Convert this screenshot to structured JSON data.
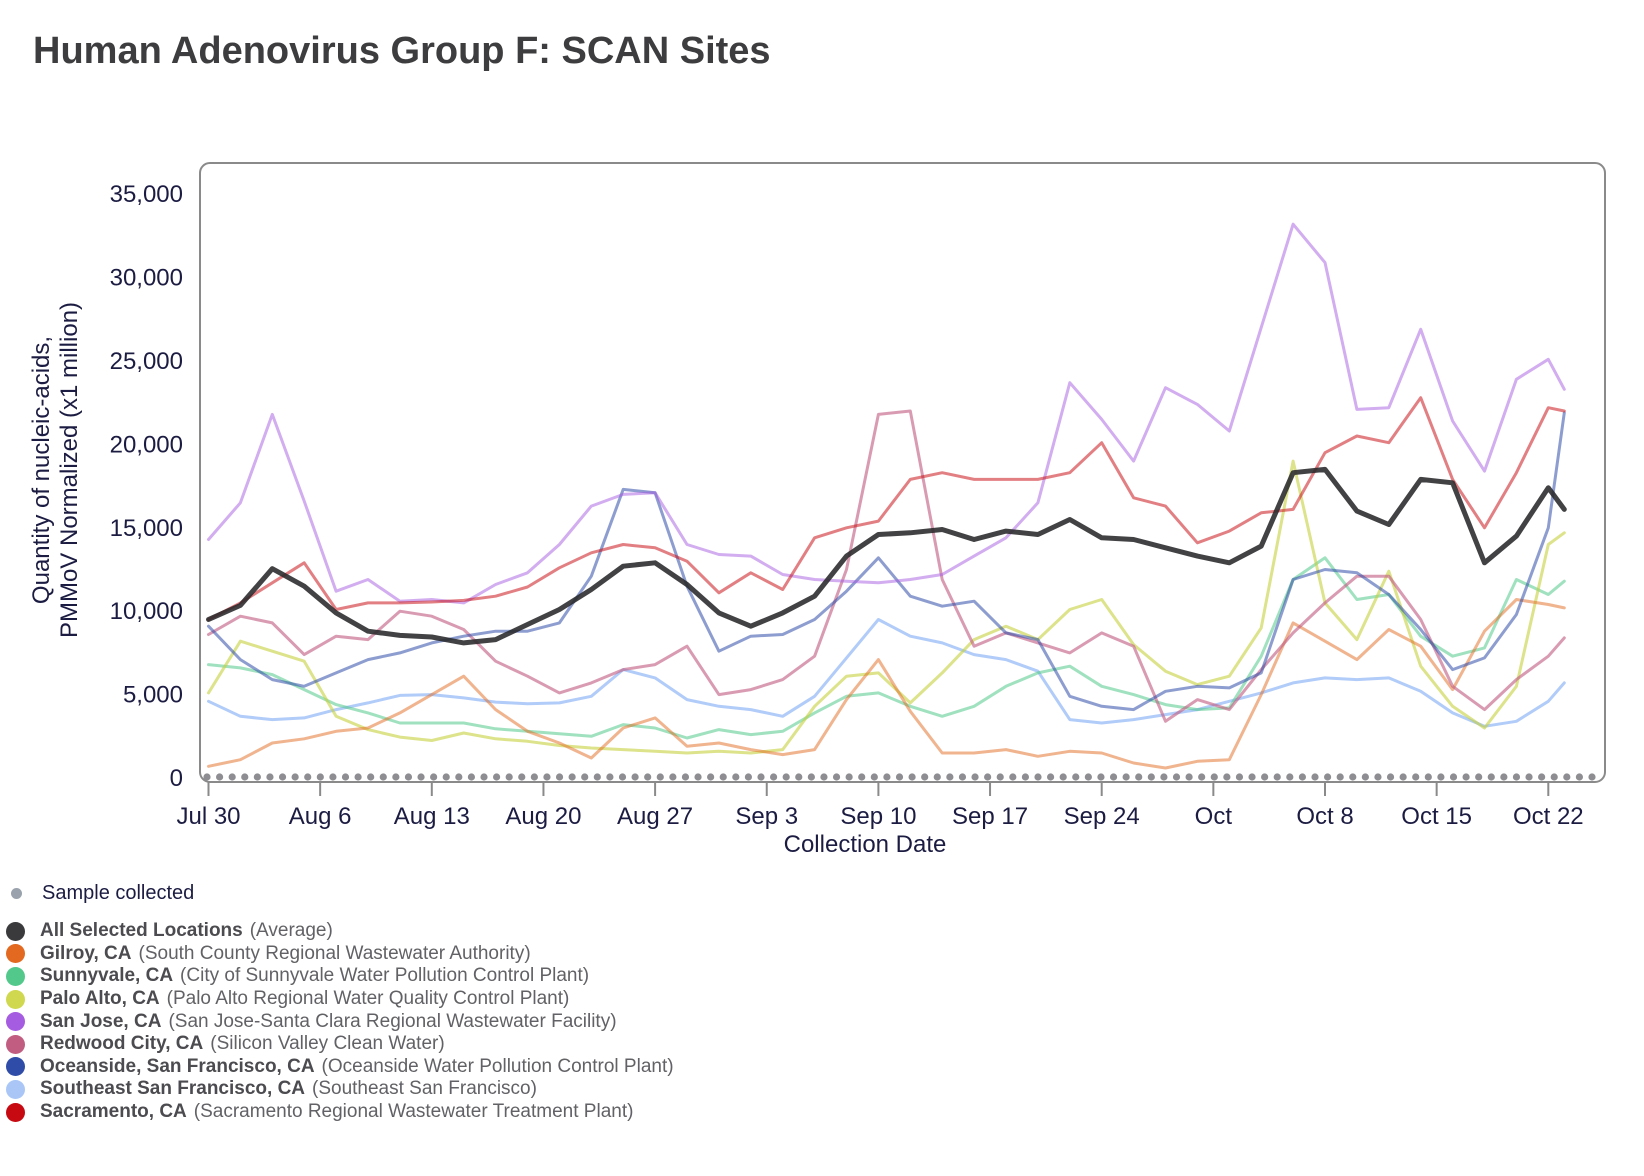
{
  "title": "Human Adenovirus Group F: SCAN Sites",
  "chart_data": {
    "type": "line",
    "title": "Human Adenovirus Group F: SCAN Sites",
    "xlabel": "Collection Date",
    "ylabel_line1": "Quantity of nucleic-acids,",
    "ylabel_line2": "PMMoV Normalized (x1 million)",
    "ylim": [
      0,
      37000
    ],
    "y_ticks": [
      0,
      5000,
      10000,
      15000,
      20000,
      25000,
      30000,
      35000
    ],
    "y_tick_labels": [
      "0",
      "5,000",
      "10,000",
      "15,000",
      "20,000",
      "25,000",
      "30,000",
      "35,000"
    ],
    "x_ticks": [
      {
        "label": "Jul 30",
        "day": 0
      },
      {
        "label": "Aug 6",
        "day": 7
      },
      {
        "label": "Aug 13",
        "day": 14
      },
      {
        "label": "Aug 20",
        "day": 21
      },
      {
        "label": "Aug 27",
        "day": 28
      },
      {
        "label": "Sep 3",
        "day": 35
      },
      {
        "label": "Sep 10",
        "day": 42
      },
      {
        "label": "Sep 17",
        "day": 49
      },
      {
        "label": "Sep 24",
        "day": 56
      },
      {
        "label": "Oct",
        "day": 63
      },
      {
        "label": "Oct 8",
        "day": 70
      },
      {
        "label": "Oct 15",
        "day": 77
      },
      {
        "label": "Oct 22",
        "day": 84
      }
    ],
    "grid": false,
    "legend_position": "bottom-left",
    "sample_collected": {
      "label": "Sample collected",
      "dot_color": "#9aa2ad",
      "row_dot_color": "#8d8d92",
      "dots_count": 111
    },
    "x_days": [
      0,
      2,
      4,
      6,
      8,
      10,
      12,
      14,
      16,
      18,
      20,
      22,
      24,
      26,
      28,
      30,
      32,
      34,
      36,
      38,
      40,
      42,
      44,
      46,
      48,
      50,
      52,
      54,
      56,
      58,
      60,
      62,
      64,
      66,
      68,
      70,
      72,
      74,
      76,
      78,
      80,
      82,
      84,
      85
    ],
    "series": [
      {
        "name": "All Selected Locations",
        "desc": "(Average)",
        "color": "#3a3a3c",
        "line_color": "rgba(40,40,42,0.88)",
        "line_width": 5,
        "values": [
          9500,
          10350,
          12550,
          11500,
          9900,
          8800,
          8550,
          8450,
          8100,
          8300,
          9200,
          10100,
          11300,
          12700,
          12900,
          11600,
          9900,
          9100,
          9900,
          10900,
          13300,
          14600,
          14700,
          14900,
          14300,
          14800,
          14600,
          15500,
          14400,
          14300,
          13800,
          13300,
          12900,
          13900,
          18300,
          18500,
          16000,
          15200,
          17900,
          17700,
          12900,
          14500,
          17400,
          16100
        ]
      },
      {
        "name": "Gilroy, CA",
        "desc": "(South County Regional Wastewater Authority)",
        "color": "#e2691f",
        "line_color": "rgba(226,105,31,0.5)",
        "line_width": 3,
        "values": [
          700,
          1100,
          2100,
          2350,
          2800,
          3000,
          3900,
          5000,
          6100,
          4100,
          2800,
          2100,
          1200,
          3000,
          3600,
          1900,
          2100,
          1700,
          1400,
          1700,
          4700,
          7100,
          4000,
          1500,
          1500,
          1700,
          1300,
          1600,
          1500,
          900,
          600,
          1000,
          1100,
          5000,
          9300,
          8200,
          7100,
          8900,
          7900,
          5300,
          8800,
          10700,
          10400,
          10200
        ]
      },
      {
        "name": "Sunnyvale, CA",
        "desc": "(City of Sunnyvale Water Pollution Control Plant)",
        "color": "#52c98b",
        "line_color": "rgba(82,201,139,0.55)",
        "line_width": 3,
        "values": [
          6800,
          6600,
          6200,
          5300,
          4400,
          3900,
          3300,
          3300,
          3300,
          2950,
          2800,
          2650,
          2500,
          3200,
          3000,
          2400,
          2900,
          2600,
          2800,
          3900,
          4900,
          5100,
          4300,
          3700,
          4300,
          5500,
          6300,
          6700,
          5500,
          5000,
          4400,
          4100,
          4200,
          7300,
          11900,
          13200,
          10700,
          11000,
          8500,
          7300,
          7800,
          11900,
          11000,
          11800
        ]
      },
      {
        "name": "Palo Alto, CA",
        "desc": "(Palo Alto Regional Water Quality Control Plant)",
        "color": "#cfd84e",
        "line_color": "rgba(197,208,60,0.6)",
        "line_width": 3,
        "values": [
          5100,
          8200,
          7600,
          7000,
          3700,
          2900,
          2450,
          2250,
          2700,
          2350,
          2200,
          1950,
          1800,
          1700,
          1600,
          1500,
          1600,
          1500,
          1700,
          4300,
          6100,
          6300,
          4500,
          6300,
          8300,
          9100,
          8300,
          10100,
          10700,
          8000,
          6400,
          5600,
          6100,
          9000,
          19000,
          10500,
          8300,
          12400,
          6700,
          4300,
          3000,
          5500,
          14000,
          14700
        ]
      },
      {
        "name": "San Jose, CA",
        "desc": "(San Jose-Santa Clara Regional Wastewater Facility)",
        "color": "#a55ce0",
        "line_color": "rgba(165,92,224,0.5)",
        "line_width": 3,
        "values": [
          14300,
          16500,
          21800,
          16600,
          11200,
          11900,
          10600,
          10700,
          10500,
          11600,
          12300,
          14000,
          16300,
          17000,
          17100,
          14000,
          13400,
          13300,
          12200,
          11900,
          11800,
          11700,
          11900,
          12200,
          13300,
          14400,
          16500,
          23700,
          21500,
          19000,
          23400,
          22400,
          20800,
          27000,
          33200,
          30900,
          22100,
          22200,
          26900,
          21400,
          18400,
          23900,
          25100,
          23300
        ]
      },
      {
        "name": "Redwood City, CA",
        "desc": "(Silicon Valley Clean Water)",
        "color": "#c25d82",
        "line_color": "rgba(194,93,130,0.62)",
        "line_width": 3,
        "values": [
          8600,
          9700,
          9300,
          7400,
          8500,
          8300,
          10000,
          9700,
          8900,
          7000,
          6100,
          5100,
          5700,
          6500,
          6800,
          7900,
          5000,
          5300,
          5900,
          7300,
          12500,
          21800,
          22000,
          11900,
          7900,
          8700,
          8100,
          7500,
          8700,
          7900,
          3400,
          4700,
          4100,
          6500,
          8700,
          10500,
          12100,
          12100,
          9500,
          5500,
          4100,
          5900,
          7300,
          8400
        ]
      },
      {
        "name": "Oceanside, San Francisco, CA",
        "desc": "(Oceanside Water Pollution Control Plant)",
        "color": "#2f4da8",
        "line_color": "rgba(47,77,168,0.55)",
        "line_width": 3,
        "values": [
          9100,
          7100,
          5900,
          5500,
          6300,
          7100,
          7500,
          8100,
          8500,
          8800,
          8800,
          9300,
          12100,
          17300,
          17100,
          11500,
          7600,
          8500,
          8600,
          9500,
          11200,
          13200,
          10900,
          10300,
          10600,
          8700,
          8300,
          4900,
          4300,
          4100,
          5200,
          5500,
          5400,
          6300,
          11900,
          12500,
          12300,
          11000,
          8900,
          6500,
          7200,
          9800,
          15000,
          21900
        ]
      },
      {
        "name": "Southeast San Francisco, CA",
        "desc": "(Southeast San Francisco)",
        "color": "#a9c6f7",
        "line_color": "rgba(169,198,247,0.9)",
        "line_width": 3,
        "values": [
          4600,
          3700,
          3500,
          3600,
          4100,
          4500,
          4950,
          5000,
          4800,
          4550,
          4450,
          4500,
          4900,
          6500,
          6000,
          4700,
          4300,
          4100,
          3700,
          4900,
          7200,
          9500,
          8500,
          8100,
          7400,
          7100,
          6400,
          3500,
          3300,
          3500,
          3800,
          4100,
          4600,
          5100,
          5700,
          6000,
          5900,
          6000,
          5200,
          3900,
          3100,
          3400,
          4600,
          5700
        ]
      },
      {
        "name": "Sacramento, CA",
        "desc": "(Sacramento Regional Wastewater Treatment Plant)",
        "color": "#c70a12",
        "line_color": "rgba(199,10,18,0.52)",
        "line_width": 3,
        "values": [
          9500,
          10500,
          11700,
          12900,
          10100,
          10500,
          10500,
          10550,
          10650,
          10900,
          11450,
          12600,
          13500,
          14000,
          13800,
          13000,
          11100,
          12300,
          11300,
          14400,
          15000,
          15400,
          17900,
          18300,
          17900,
          17900,
          17900,
          18300,
          20100,
          16800,
          16300,
          14100,
          14800,
          15900,
          16100,
          19500,
          20500,
          20100,
          22800,
          17900,
          15000,
          18300,
          22200,
          22000
        ]
      }
    ]
  }
}
